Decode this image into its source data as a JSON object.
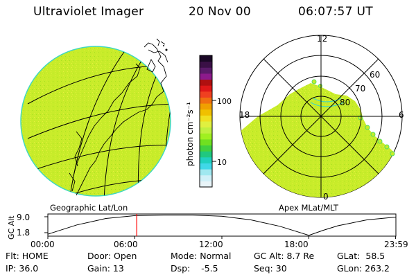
{
  "header": {
    "title": "Ultraviolet Imager",
    "date": "20 Nov 00",
    "time": "06:07:57 UT"
  },
  "colorbar": {
    "label": "photon cm⁻²s⁻¹",
    "ticks": [
      "100",
      "10"
    ],
    "colors": [
      "#1a0826",
      "#3a1046",
      "#5a1a6a",
      "#8c1a8c",
      "#b01010",
      "#e01818",
      "#f04020",
      "#f07010",
      "#f0a000",
      "#f0c000",
      "#f0e020",
      "#e0f040",
      "#c0f040",
      "#a0f020",
      "#70e020",
      "#40d040",
      "#20c880",
      "#20d0c0",
      "#40d8e8",
      "#a0e8f0",
      "#d0f0f8",
      "#e8f4f8"
    ]
  },
  "panels": {
    "left_caption": "Geographic Lat/Lon",
    "right_caption": "Apex MLat/MLT"
  },
  "polar": {
    "mlt_labels": [
      "12",
      "18",
      "6",
      "0"
    ],
    "lat_labels": [
      "60",
      "70",
      "80"
    ]
  },
  "altitude_plot": {
    "ylabel": "GC Alt",
    "yticks": [
      "9.0",
      "1.8"
    ],
    "xticks": [
      "00:00",
      "06:00",
      "12:00",
      "18:00",
      "23:59"
    ],
    "curve": {
      "x_hours": [
        0,
        2,
        4,
        6,
        8,
        10,
        12,
        14,
        16,
        17,
        18,
        19,
        20,
        22,
        23.98
      ],
      "y_re": [
        2.2,
        5.5,
        7.8,
        8.8,
        9.0,
        9.0,
        8.6,
        7.3,
        5.0,
        3.4,
        1.8,
        3.6,
        5.2,
        7.3,
        8.3
      ]
    },
    "marker_hour": 6.13
  },
  "status": {
    "flt": "Flt: HOME",
    "ip": "IP: 36.0",
    "door": "Door: Open",
    "gain": "Gain: 13",
    "mode": "Mode: Normal",
    "dsp": "Dsp:    -5.5",
    "gcalt": "GC Alt: 8.7 Re",
    "seq": "Seq: 30",
    "glat": "GLat:  58.5",
    "glon": "GLon: 263.2"
  },
  "colors": {
    "image_fill": "#c8ec2a",
    "image_rim": "#40d8c0",
    "marker": "#ff0000"
  }
}
